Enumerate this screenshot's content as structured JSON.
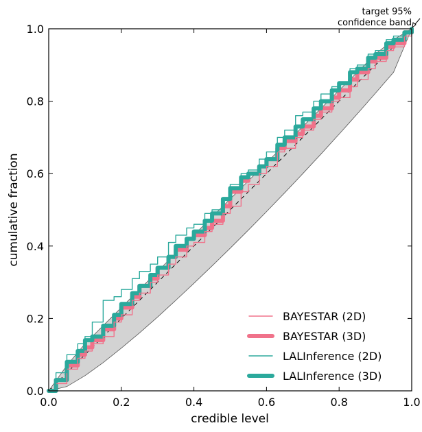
{
  "chart_data": {
    "type": "line",
    "xlabel": "credible level",
    "ylabel": "cumulative fraction",
    "xlim": [
      0.0,
      1.0
    ],
    "ylim": [
      0.0,
      1.0
    ],
    "grid": false,
    "legend_position": "bottom-right",
    "xticks": [
      "0.0",
      "0.2",
      "0.4",
      "0.6",
      "0.8",
      "1.0"
    ],
    "yticks": [
      "0.0",
      "0.2",
      "0.4",
      "0.6",
      "0.8",
      "1.0"
    ],
    "annotation": {
      "lines": [
        "target 95%",
        "confidence band"
      ]
    },
    "confidence_band": {
      "x": [
        0,
        0.05,
        0.1,
        0.15,
        0.2,
        0.25,
        0.3,
        0.35,
        0.4,
        0.45,
        0.5,
        0.55,
        0.6,
        0.65,
        0.7,
        0.75,
        0.8,
        0.85,
        0.9,
        0.95,
        1.0
      ],
      "lower": [
        0,
        0.012,
        0.042,
        0.078,
        0.118,
        0.16,
        0.204,
        0.25,
        0.297,
        0.345,
        0.394,
        0.444,
        0.495,
        0.547,
        0.6,
        0.654,
        0.709,
        0.765,
        0.822,
        0.88,
        1.0
      ],
      "upper": [
        0,
        0.07,
        0.13,
        0.18,
        0.23,
        0.28,
        0.33,
        0.38,
        0.43,
        0.48,
        0.53,
        0.58,
        0.63,
        0.68,
        0.73,
        0.78,
        0.83,
        0.88,
        0.93,
        0.97,
        1.0
      ]
    },
    "reference_line": {
      "x": [
        0,
        1
      ],
      "y": [
        0,
        1
      ]
    },
    "series": [
      {
        "name": "BAYESTAR (2D)",
        "color": "#f0728a",
        "width": "thin",
        "x": [
          0,
          0.02,
          0.05,
          0.08,
          0.1,
          0.12,
          0.15,
          0.18,
          0.2,
          0.23,
          0.25,
          0.28,
          0.3,
          0.33,
          0.35,
          0.38,
          0.4,
          0.43,
          0.45,
          0.48,
          0.5,
          0.53,
          0.55,
          0.58,
          0.6,
          0.63,
          0.65,
          0.68,
          0.7,
          0.73,
          0.75,
          0.78,
          0.8,
          0.83,
          0.85,
          0.88,
          0.9,
          0.93,
          0.95,
          0.98,
          1.0
        ],
        "y": [
          0,
          0.02,
          0.06,
          0.09,
          0.11,
          0.13,
          0.15,
          0.19,
          0.21,
          0.25,
          0.27,
          0.3,
          0.32,
          0.35,
          0.37,
          0.4,
          0.41,
          0.44,
          0.46,
          0.49,
          0.51,
          0.55,
          0.57,
          0.6,
          0.62,
          0.66,
          0.67,
          0.7,
          0.72,
          0.75,
          0.77,
          0.8,
          0.81,
          0.84,
          0.86,
          0.89,
          0.91,
          0.94,
          0.95,
          0.98,
          1.0
        ]
      },
      {
        "name": "BAYESTAR (3D)",
        "color": "#f0728a",
        "width": "thick",
        "x": [
          0,
          0.02,
          0.05,
          0.08,
          0.1,
          0.12,
          0.15,
          0.18,
          0.2,
          0.23,
          0.25,
          0.28,
          0.3,
          0.33,
          0.35,
          0.38,
          0.4,
          0.43,
          0.45,
          0.48,
          0.5,
          0.53,
          0.55,
          0.58,
          0.6,
          0.63,
          0.65,
          0.68,
          0.7,
          0.73,
          0.75,
          0.78,
          0.8,
          0.83,
          0.85,
          0.88,
          0.9,
          0.93,
          0.95,
          0.98,
          1.0
        ],
        "y": [
          0,
          0.03,
          0.07,
          0.1,
          0.12,
          0.14,
          0.17,
          0.2,
          0.23,
          0.26,
          0.29,
          0.31,
          0.34,
          0.37,
          0.39,
          0.42,
          0.43,
          0.45,
          0.47,
          0.51,
          0.55,
          0.58,
          0.6,
          0.62,
          0.64,
          0.67,
          0.69,
          0.71,
          0.73,
          0.76,
          0.78,
          0.81,
          0.83,
          0.86,
          0.88,
          0.91,
          0.92,
          0.95,
          0.96,
          0.99,
          1.0
        ]
      },
      {
        "name": "LALInference (2D)",
        "color": "#2ba99c",
        "width": "thin",
        "x": [
          0,
          0.02,
          0.05,
          0.08,
          0.1,
          0.12,
          0.15,
          0.18,
          0.2,
          0.23,
          0.25,
          0.28,
          0.3,
          0.33,
          0.35,
          0.38,
          0.4,
          0.43,
          0.45,
          0.48,
          0.5,
          0.53,
          0.55,
          0.58,
          0.6,
          0.63,
          0.65,
          0.68,
          0.7,
          0.73,
          0.75,
          0.78,
          0.8,
          0.83,
          0.85,
          0.88,
          0.9,
          0.93,
          0.95,
          0.98,
          1.0
        ],
        "y": [
          0,
          0.05,
          0.1,
          0.13,
          0.15,
          0.19,
          0.25,
          0.26,
          0.28,
          0.31,
          0.33,
          0.35,
          0.37,
          0.41,
          0.43,
          0.45,
          0.46,
          0.49,
          0.5,
          0.53,
          0.57,
          0.6,
          0.61,
          0.64,
          0.66,
          0.7,
          0.72,
          0.76,
          0.77,
          0.8,
          0.82,
          0.84,
          0.85,
          0.89,
          0.9,
          0.93,
          0.94,
          0.97,
          0.98,
          0.99,
          1.0
        ]
      },
      {
        "name": "LALInference (3D)",
        "color": "#2ba99c",
        "width": "thick",
        "x": [
          0,
          0.02,
          0.05,
          0.08,
          0.1,
          0.12,
          0.15,
          0.18,
          0.2,
          0.23,
          0.25,
          0.28,
          0.3,
          0.33,
          0.35,
          0.38,
          0.4,
          0.43,
          0.45,
          0.48,
          0.5,
          0.53,
          0.55,
          0.58,
          0.6,
          0.63,
          0.65,
          0.68,
          0.7,
          0.73,
          0.75,
          0.78,
          0.8,
          0.83,
          0.85,
          0.88,
          0.9,
          0.93,
          0.95,
          0.98,
          1.0
        ],
        "y": [
          0,
          0.03,
          0.08,
          0.11,
          0.14,
          0.15,
          0.18,
          0.21,
          0.24,
          0.27,
          0.29,
          0.32,
          0.34,
          0.37,
          0.4,
          0.42,
          0.44,
          0.47,
          0.49,
          0.53,
          0.56,
          0.59,
          0.6,
          0.62,
          0.64,
          0.68,
          0.7,
          0.73,
          0.75,
          0.78,
          0.8,
          0.83,
          0.85,
          0.88,
          0.89,
          0.92,
          0.93,
          0.96,
          0.97,
          0.99,
          1.0
        ]
      }
    ]
  }
}
